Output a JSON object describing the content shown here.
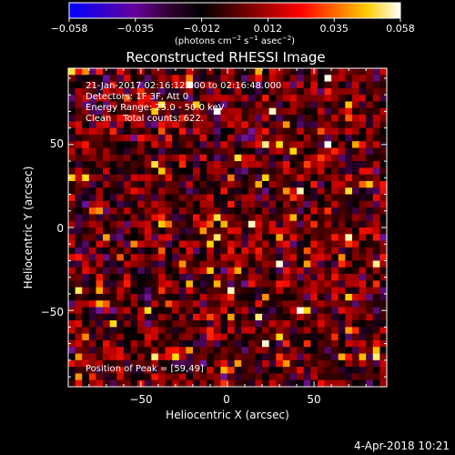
{
  "colorbar": {
    "ticks": [
      "−0.058",
      "−0.035",
      "−0.012",
      "0.012",
      "0.035",
      "0.058"
    ],
    "units_main": "(photons cm",
    "units_sup1": "−2",
    "units_mid1": " s",
    "units_sup2": "−1",
    "units_mid2": " asec",
    "units_sup3": "−2",
    "units_end": ")",
    "colors": [
      "#0000ff",
      "#3300cc",
      "#660099",
      "#330033",
      "#000000",
      "#550000",
      "#aa0000",
      "#ff0000",
      "#ff6600",
      "#ffcc00",
      "#ffffff"
    ]
  },
  "chart_data": {
    "type": "heatmap",
    "title": "Reconstructed RHESSI Image",
    "xlabel": "Heliocentric X (arcsec)",
    "ylabel": "Heliocentric Y (arcsec)",
    "xlim": [
      -92,
      92
    ],
    "ylim": [
      -96,
      96
    ],
    "xticks": [
      "−50",
      "0",
      "50"
    ],
    "xtick_values": [
      -50,
      0,
      50
    ],
    "yticks": [
      "50",
      "0",
      "−50"
    ],
    "ytick_values": [
      50,
      0,
      -50
    ],
    "value_range": [
      -0.058,
      0.058
    ],
    "grid_cols": 46,
    "grid_rows": 48,
    "noise_seed": 7,
    "peak_position": [
      59,
      49
    ]
  },
  "info": {
    "line1": "21-Jan-2017 02:16:12.000 to 02:16:48.000",
    "line2": "Detectors: 1F 3F, Att 0",
    "line3": "Energy Range: 25.0 - 50.0 keV",
    "line4": "Clean    Total counts: 622.",
    "peak": "Position of Peak = [59,49]"
  },
  "footer": {
    "date": "4-Apr-2018 10:21"
  }
}
